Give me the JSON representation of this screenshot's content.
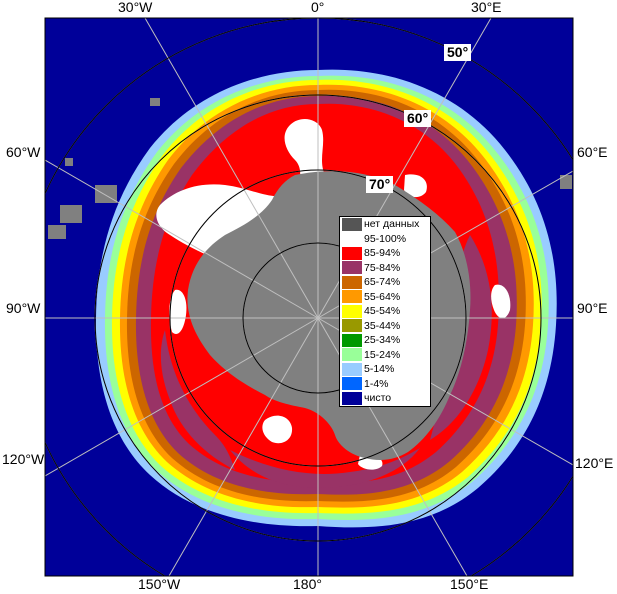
{
  "graticule": {
    "lon_labels": {
      "w30": "30°W",
      "zero": "0°",
      "e30": "30°E",
      "w60": "60°W",
      "e60": "60°E",
      "w90": "90°W",
      "e90": "90°E",
      "w120": "120°W",
      "e120": "120°E",
      "w150": "150°W",
      "l180": "180°",
      "e150": "150°E"
    },
    "lat_labels": {
      "lat50": "50°",
      "lat60": "60°",
      "lat70": "70°"
    }
  },
  "legend": {
    "items": [
      {
        "label": "нет данных",
        "color": "#555555"
      },
      {
        "label": "95-100%",
        "color": "#ffffff"
      },
      {
        "label": "85-94%",
        "color": "#ff0000"
      },
      {
        "label": "75-84%",
        "color": "#993366"
      },
      {
        "label": "65-74%",
        "color": "#cc6600"
      },
      {
        "label": "55-64%",
        "color": "#ff9900"
      },
      {
        "label": "45-54%",
        "color": "#ffff00"
      },
      {
        "label": "35-44%",
        "color": "#999900"
      },
      {
        "label": "25-34%",
        "color": "#009900"
      },
      {
        "label": "15-24%",
        "color": "#99ff99"
      },
      {
        "label": "5-14%",
        "color": "#99ccff"
      },
      {
        "label": "1-4%",
        "color": "#0066ff"
      },
      {
        "label": "чисто",
        "color": "#000099"
      }
    ]
  },
  "colors": {
    "ocean": "#000099",
    "land": "#808080",
    "grid": "#bfbfbf"
  }
}
